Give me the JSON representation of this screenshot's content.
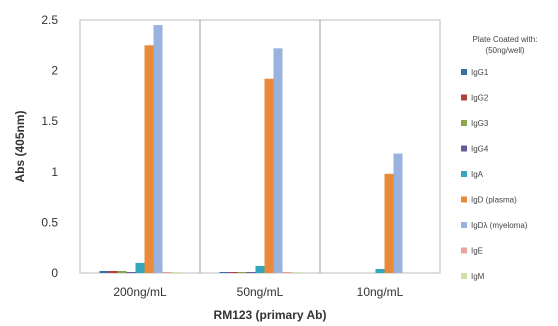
{
  "chart_data": {
    "type": "bar",
    "categories": [
      "200ng/mL",
      "50ng/mL",
      "10ng/mL"
    ],
    "xlabel": "RM123 (primary Ab)",
    "ylabel": "Abs (405nm)",
    "ylim": [
      0,
      2.5
    ],
    "yticks": [
      "0",
      "0.5",
      "1",
      "1.5",
      "2",
      "2.5"
    ],
    "grid": false,
    "legend_title": "Plate Coated with: (50ng/well)",
    "legend_position": "right",
    "series": [
      {
        "name": "IgG1",
        "color": "#3a6ea5",
        "values": [
          0.02,
          0.01,
          0.0
        ]
      },
      {
        "name": "IgG2",
        "color": "#b0413e",
        "values": [
          0.02,
          0.01,
          0.0
        ]
      },
      {
        "name": "IgG3",
        "color": "#8aa64a",
        "values": [
          0.02,
          0.01,
          0.0
        ]
      },
      {
        "name": "IgG4",
        "color": "#6a5a9a",
        "values": [
          0.01,
          0.01,
          0.0
        ]
      },
      {
        "name": "IgA",
        "color": "#35a7bd",
        "values": [
          0.1,
          0.07,
          0.04
        ]
      },
      {
        "name": "IgD (plasma)",
        "color": "#e88a3a",
        "values": [
          2.25,
          1.92,
          0.98
        ]
      },
      {
        "name": "IgDλ (myeloma)",
        "color": "#99b2de",
        "values": [
          2.45,
          2.22,
          1.18
        ]
      },
      {
        "name": "IgE",
        "color": "#e8a3a1",
        "values": [
          0.01,
          0.01,
          0.0
        ]
      },
      {
        "name": "IgM",
        "color": "#cfe0a8",
        "values": [
          0.01,
          0.01,
          0.0
        ]
      }
    ]
  }
}
